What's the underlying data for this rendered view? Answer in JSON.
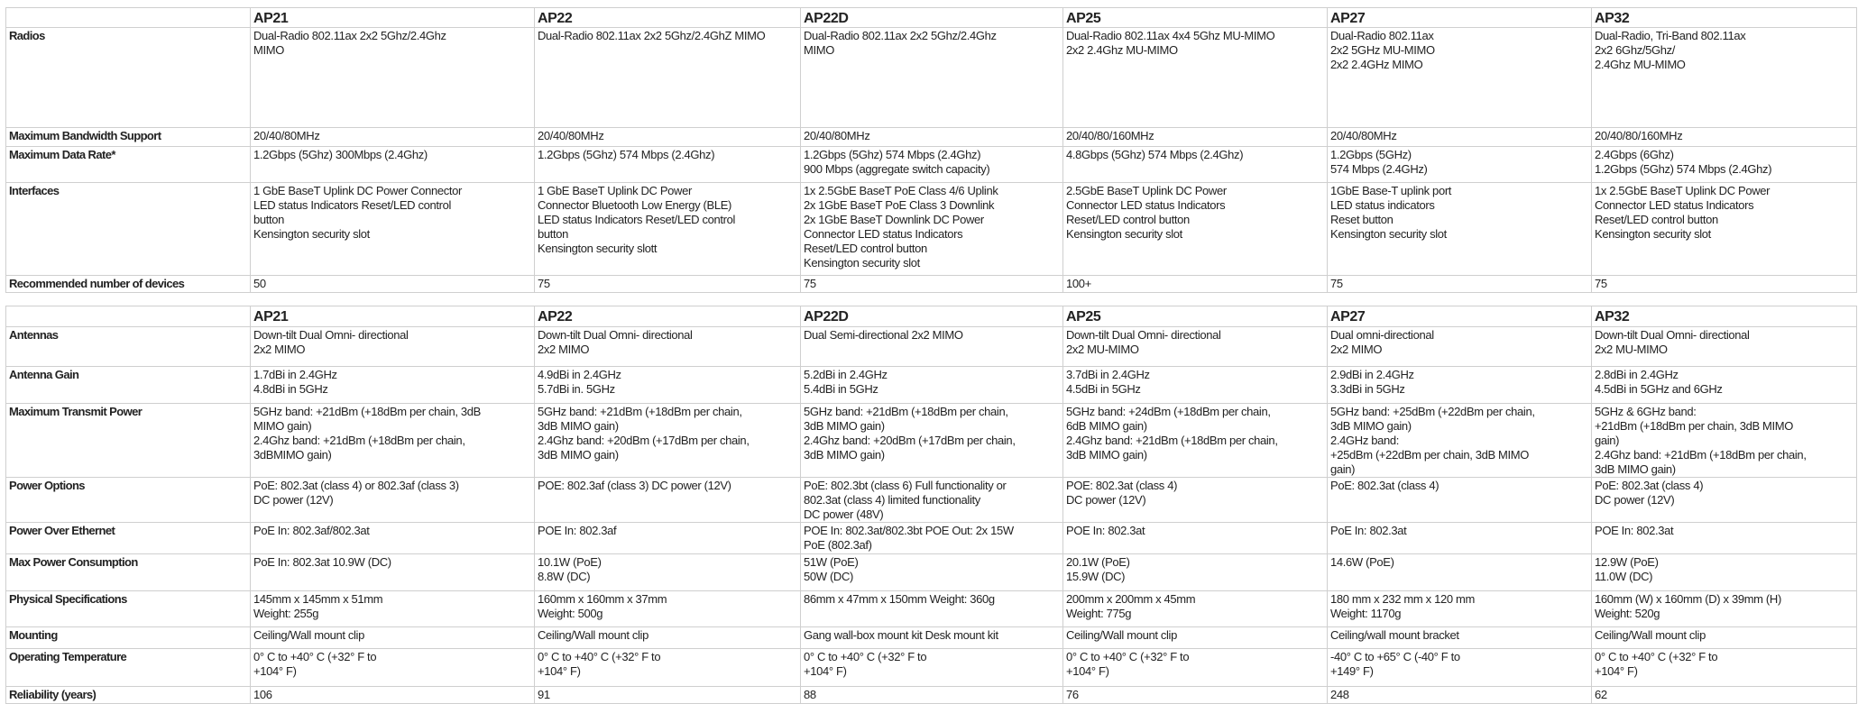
{
  "models": [
    "AP21",
    "AP22",
    "AP22D",
    "AP25",
    "AP27",
    "AP32"
  ],
  "table1": {
    "rows": [
      {
        "label": "Radios",
        "values": [
          "Dual-Radio 802.11ax 2x2 5Ghz/2.4Ghz\nMIMO",
          "Dual-Radio 802.11ax 2x2 5Ghz/2.4GhZ MIMO",
          "Dual-Radio 802.11ax 2x2 5Ghz/2.4Ghz\nMIMO",
          "Dual-Radio 802.11ax 4x4 5Ghz MU-MIMO\n2x2 2.4Ghz MU-MIMO",
          "Dual-Radio 802.11ax\n2x2 5GHz MU-MIMO\n2x2 2.4GHz MIMO",
          "Dual-Radio, Tri-Band 802.11ax\n2x2 6Ghz/5Ghz/\n2.4Ghz MU-MIMO"
        ]
      },
      {
        "label": "Maximum Bandwidth Support",
        "values": [
          "20/40/80MHz",
          "20/40/80MHz",
          "20/40/80MHz",
          "20/40/80/160MHz",
          "20/40/80MHz",
          "20/40/80/160MHz"
        ]
      },
      {
        "label": "Maximum Data Rate*",
        "values": [
          "1.2Gbps (5Ghz) 300Mbps (2.4Ghz)",
          "1.2Gbps (5Ghz) 574 Mbps (2.4Ghz)",
          "1.2Gbps (5Ghz) 574 Mbps (2.4Ghz)\n900 Mbps (aggregate switch capacity)",
          "4.8Gbps (5Ghz) 574 Mbps (2.4Ghz)",
          "1.2Gbps (5GHz)\n574 Mbps (2.4GHz)",
          "2.4Gbps (6Ghz)\n1.2Gbps (5Ghz) 574 Mbps (2.4Ghz)"
        ]
      },
      {
        "label": "Interfaces",
        "values": [
          "1 GbE BaseT Uplink DC Power Connector\nLED status Indicators Reset/LED control\nbutton\nKensington security slot",
          "1 GbE BaseT Uplink DC Power\nConnector Bluetooth Low Energy (BLE)\nLED status Indicators Reset/LED control\nbutton\nKensington security slott",
          "1x 2.5GbE BaseT PoE Class 4/6 Uplink\n2x 1GbE BaseT PoE Class 3 Downlink\n2x 1GbE BaseT Downlink DC Power\nConnector  LED status Indicators\nReset/LED control  button\nKensington security slot",
          "2.5GbE BaseT Uplink DC Power\nConnector LED status Indicators\nReset/LED control button\nKensington security slot",
          "1GbE Base-T uplink port\nLED status indicators\nReset button\nKensington security slot",
          "1x 2.5GbE BaseT Uplink DC Power\nConnector LED status Indicators\nReset/LED control  button\nKensington security slot"
        ]
      },
      {
        "label": "Recommended number of devices",
        "values": [
          "50",
          "75",
          "75",
          "100+",
          "75",
          "75"
        ]
      }
    ]
  },
  "table2": {
    "rows": [
      {
        "label": "Antennas",
        "values": [
          "Down-tilt Dual Omni- directional\n2x2 MIMO",
          "Down-tilt Dual Omni- directional\n2x2 MIMO",
          "Dual Semi-directional 2x2 MIMO",
          "Down-tilt Dual Omni- directional\n2x2 MU-MIMO",
          "Dual omni-directional\n2x2 MIMO",
          "Down-tilt Dual Omni- directional\n2x2 MU-MIMO"
        ]
      },
      {
        "label": "Antenna Gain",
        "values": [
          "1.7dBi in 2.4GHz\n4.8dBi in 5GHz",
          "4.9dBi in 2.4GHz\n5.7dBi in. 5GHz",
          "5.2dBi in 2.4GHz\n5.4dBi in 5GHz",
          "3.7dBi in 2.4GHz\n4.5dBi in 5GHz",
          "2.9dBi in 2.4GHz\n3.3dBi in 5GHz",
          "2.8dBi in 2.4GHz\n4.5dBi in 5GHz and 6GHz"
        ]
      },
      {
        "label": "Maximum Transmit Power",
        "values": [
          "5GHz band: +21dBm (+18dBm per chain, 3dB\nMIMO gain)\n2.4Ghz band: +21dBm (+18dBm per chain,\n3dBMIMO gain)",
          "5GHz band: +21dBm (+18dBm per chain,\n3dB MIMO gain)\n2.4Ghz band: +20dBm (+17dBm per chain,\n3dB MIMO gain)",
          "5GHz band: +21dBm (+18dBm per chain,\n3dB MIMO gain)\n2.4Ghz band: +20dBm (+17dBm per chain,\n3dB MIMO gain)",
          "5GHz band: +24dBm (+18dBm per chain,\n6dB MIMO gain)\n2.4Ghz band: +21dBm (+18dBm per chain,\n3dB MIMO gain)",
          "5GHz band: +25dBm (+22dBm per chain,\n3dB MIMO gain)\n2.4GHz band:\n+25dBm (+22dBm per chain, 3dB MIMO\ngain)",
          "5GHz & 6GHz band:\n+21dBm (+18dBm per chain, 3dB MIMO\ngain)\n2.4Ghz band: +21dBm (+18dBm per chain,\n3dB MIMO gain)"
        ]
      },
      {
        "label": "Power Options",
        "values": [
          "PoE: 802.3at (class 4) or 802.3af (class 3)\nDC power (12V)",
          "POE: 802.3af (class 3) DC power (12V)",
          "PoE: 802.3bt (class 6) Full functionality or\n802.3at (class 4) limited functionality\nDC power (48V)",
          "POE: 802.3at (class 4)\nDC power (12V)",
          "PoE: 802.3at (class 4)",
          "PoE: 802.3at (class 4)\nDC power (12V)"
        ]
      },
      {
        "label": "Power Over Ethernet",
        "values": [
          "PoE In: 802.3af/802.3at",
          "POE In: 802.3af",
          "POE In: 802.3at/802.3bt POE Out: 2x 15W\nPoE (802.3af)",
          "POE In: 802.3at",
          "PoE In: 802.3at",
          "POE In: 802.3at"
        ]
      },
      {
        "label": "Max Power Consumption",
        "values": [
          "PoE In: 802.3at 10.9W (DC)",
          "10.1W (PoE)\n8.8W (DC)",
          "51W (PoE)\n50W (DC)",
          "20.1W (PoE)\n15.9W (DC)",
          "14.6W (PoE)",
          "12.9W (PoE)\n11.0W (DC)"
        ]
      },
      {
        "label": "Physical Specifications",
        "values": [
          "145mm x 145mm x 51mm\nWeight: 255g",
          "160mm x 160mm x 37mm\nWeight: 500g",
          "86mm x 47mm x 150mm Weight: 360g",
          "200mm x 200mm x 45mm\nWeight: 775g",
          "180 mm x 232 mm x 120 mm\nWeight: 1170g",
          "160mm (W) x 160mm (D) x 39mm (H)\nWeight: 520g"
        ]
      },
      {
        "label": "Mounting",
        "values": [
          "Ceiling/Wall mount clip",
          "Ceiling/Wall mount clip",
          "Gang wall-box mount kit Desk mount kit",
          "Ceiling/Wall mount clip",
          "Ceiling/wall mount bracket",
          "Ceiling/Wall mount clip"
        ]
      },
      {
        "label": "Operating Temperature",
        "values": [
          "0° C to +40° C (+32° F to\n+104° F)",
          "0° C to +40° C (+32° F to\n+104° F)",
          "0° C to +40° C (+32° F to\n+104° F)",
          "0° C to +40° C (+32° F to\n+104° F)",
          "-40° C to +65° C (-40° F to\n+149° F)",
          "0° C to +40° C (+32° F to\n+104° F)"
        ]
      },
      {
        "label": "Reliability (years)",
        "values": [
          "106",
          "91",
          "88",
          "76",
          "248",
          "62"
        ]
      }
    ]
  }
}
